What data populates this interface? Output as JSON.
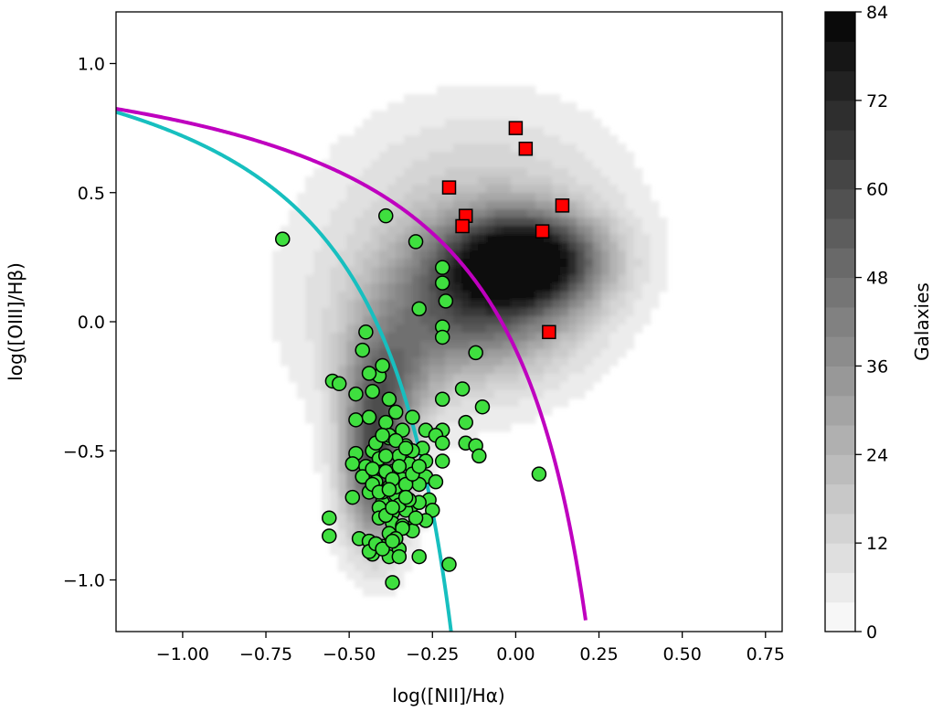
{
  "chart_data": {
    "type": "scatter",
    "xlabel": "log([NII]/Hα)",
    "ylabel": "log([OIII]/Hβ)",
    "xlim": [
      -1.2,
      0.8
    ],
    "ylim": [
      -1.2,
      1.2
    ],
    "xticks": [
      -1.0,
      -0.75,
      -0.5,
      -0.25,
      0.0,
      0.25,
      0.5,
      0.75
    ],
    "xtick_labels": [
      "−1.00",
      "−0.75",
      "−0.50",
      "−0.25",
      "0.00",
      "0.25",
      "0.50",
      "0.75"
    ],
    "yticks": [
      -1.0,
      -0.5,
      0.0,
      0.5,
      1.0
    ],
    "ytick_labels": [
      "−1.0",
      "−0.5",
      "0.0",
      "0.5",
      "1.0"
    ],
    "grid": false,
    "colorbar": {
      "label": "Galaxies",
      "min": 0,
      "max": 84,
      "ticks": [
        0,
        12,
        24,
        36,
        48,
        60,
        72,
        84
      ],
      "levels": 21,
      "colormap": "greys"
    },
    "density_blobs": [
      {
        "cx": 0.03,
        "cy": 0.24,
        "sx": 0.15,
        "sy": 0.12,
        "w": 1.0
      },
      {
        "cx": -0.12,
        "cy": 0.06,
        "sx": 0.2,
        "sy": 0.18,
        "w": 0.55
      },
      {
        "cx": -0.42,
        "cy": -0.55,
        "sx": 0.07,
        "sy": 0.22,
        "w": 0.75
      },
      {
        "cx": -0.38,
        "cy": -0.2,
        "sx": 0.1,
        "sy": 0.15,
        "w": 0.35
      },
      {
        "cx": -0.08,
        "cy": 0.45,
        "sx": 0.28,
        "sy": 0.28,
        "w": 0.18
      },
      {
        "cx": -0.3,
        "cy": 0.05,
        "sx": 0.32,
        "sy": 0.35,
        "w": 0.1
      }
    ],
    "curves": [
      {
        "name": "",
        "color": "#17bfbf",
        "formula": "0.61/(x-0.05)+1.3",
        "x_range": [
          -1.2,
          -0.19
        ]
      },
      {
        "name": "",
        "color": "#bf00bf",
        "formula": "0.61/(x-0.47)+1.19",
        "x_range": [
          -1.2,
          0.21
        ]
      }
    ],
    "series": [
      {
        "marker": "square",
        "color": "#ff0000",
        "x": [
          0.0,
          0.03,
          -0.2,
          -0.15,
          -0.16,
          0.14,
          0.08,
          0.1
        ],
        "y": [
          0.75,
          0.67,
          0.52,
          0.41,
          0.37,
          0.45,
          0.35,
          -0.04
        ]
      },
      {
        "marker": "circle",
        "color": "#3fdf3f",
        "x": [
          -0.7,
          -0.39,
          -0.3,
          -0.22,
          -0.22,
          -0.21,
          -0.29,
          -0.22,
          -0.22,
          -0.22,
          -0.12,
          -0.45,
          -0.46,
          -0.55,
          -0.53,
          -0.48,
          -0.43,
          -0.38,
          -0.41,
          -0.44,
          -0.4,
          -0.16,
          -0.22,
          -0.15,
          -0.1,
          -0.48,
          -0.44,
          -0.39,
          -0.36,
          -0.31,
          -0.27,
          -0.24,
          -0.15,
          -0.48,
          -0.43,
          -0.38,
          -0.33,
          -0.28,
          -0.22,
          -0.12,
          -0.11,
          -0.49,
          -0.45,
          -0.41,
          -0.37,
          -0.32,
          -0.27,
          -0.22,
          0.07,
          -0.46,
          -0.42,
          -0.38,
          -0.34,
          -0.29,
          -0.24,
          -0.49,
          -0.44,
          -0.4,
          -0.36,
          -0.31,
          -0.26,
          -0.41,
          -0.37,
          -0.33,
          -0.29,
          -0.25,
          -0.56,
          -0.41,
          -0.37,
          -0.32,
          -0.27,
          -0.56,
          -0.47,
          -0.44,
          -0.4,
          -0.36,
          -0.31,
          -0.43,
          -0.38,
          -0.29,
          -0.2,
          -0.37,
          -0.35,
          -0.42,
          -0.38,
          -0.34,
          -0.3,
          -0.4,
          -0.36,
          -0.33,
          -0.43,
          -0.39,
          -0.35,
          -0.31,
          -0.27,
          -0.38,
          -0.34,
          -0.42,
          -0.4,
          -0.36,
          -0.33,
          -0.39,
          -0.35,
          -0.31,
          -0.37,
          -0.43,
          -0.41,
          -0.38,
          -0.35,
          -0.32,
          -0.39,
          -0.37,
          -0.34,
          -0.36,
          -0.44,
          -0.42,
          -0.4,
          -0.37,
          -0.35,
          -0.33,
          -0.29
        ],
        "y": [
          0.32,
          0.41,
          0.31,
          0.21,
          0.15,
          0.08,
          0.05,
          -0.02,
          -0.06,
          -0.3,
          -0.12,
          -0.04,
          -0.11,
          -0.23,
          -0.24,
          -0.28,
          -0.27,
          -0.3,
          -0.21,
          -0.2,
          -0.17,
          -0.26,
          -0.42,
          -0.39,
          -0.33,
          -0.38,
          -0.37,
          -0.39,
          -0.35,
          -0.37,
          -0.42,
          -0.44,
          -0.47,
          -0.51,
          -0.5,
          -0.45,
          -0.48,
          -0.49,
          -0.47,
          -0.48,
          -0.52,
          -0.55,
          -0.56,
          -0.53,
          -0.58,
          -0.55,
          -0.6,
          -0.54,
          -0.59,
          -0.6,
          -0.62,
          -0.64,
          -0.61,
          -0.63,
          -0.62,
          -0.68,
          -0.66,
          -0.7,
          -0.67,
          -0.71,
          -0.69,
          -0.72,
          -0.74,
          -0.73,
          -0.7,
          -0.73,
          -0.76,
          -0.76,
          -0.78,
          -0.8,
          -0.77,
          -0.83,
          -0.84,
          -0.85,
          -0.87,
          -0.84,
          -0.81,
          -0.9,
          -0.91,
          -0.91,
          -0.94,
          -1.01,
          -0.88,
          -0.86,
          -0.82,
          -0.79,
          -0.76,
          -0.66,
          -0.64,
          -0.63,
          -0.57,
          -0.58,
          -0.52,
          -0.5,
          -0.54,
          -0.44,
          -0.42,
          -0.47,
          -0.44,
          -0.46,
          -0.49,
          -0.52,
          -0.56,
          -0.59,
          -0.61,
          -0.63,
          -0.66,
          -0.65,
          -0.71,
          -0.69,
          -0.75,
          -0.72,
          -0.8,
          -0.84,
          -0.89,
          -0.86,
          -0.88,
          -0.85,
          -0.91,
          -0.68,
          -0.56
        ]
      }
    ]
  }
}
